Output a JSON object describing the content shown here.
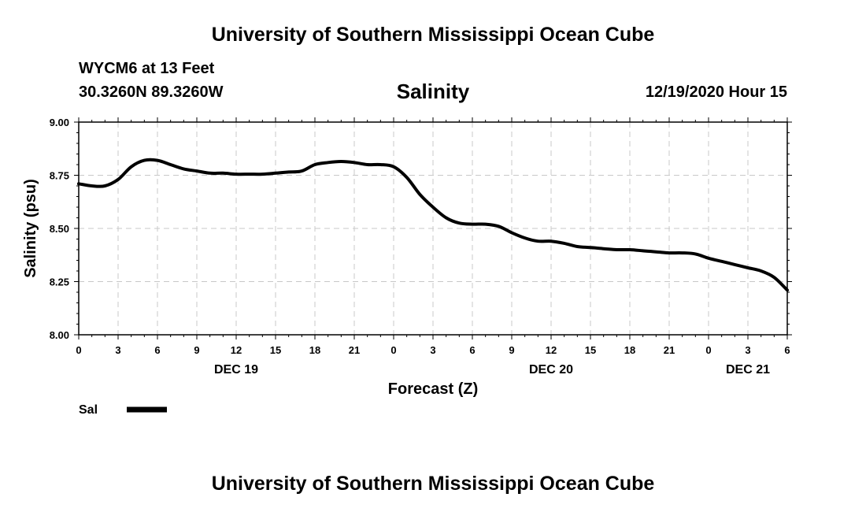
{
  "header": {
    "org_title": "University of Southern Mississippi Ocean Cube",
    "station": "WYCM6 at 13 Feet",
    "coords": "30.3260N 89.3260W",
    "chart_title": "Salinity",
    "datetime": "12/19/2020 Hour 15"
  },
  "footer": {
    "org_title": "University of Southern Mississippi Ocean Cube"
  },
  "chart_data": {
    "type": "line",
    "title": "Salinity",
    "xlabel": "Forecast (Z)",
    "ylabel": "Salinity (psu)",
    "ylim": [
      8.0,
      9.0
    ],
    "xlim": [
      0,
      54
    ],
    "yticks": [
      "8.00",
      "8.25",
      "8.50",
      "8.75",
      "9.00"
    ],
    "xtick_labels": [
      "0",
      "3",
      "6",
      "9",
      "12",
      "15",
      "18",
      "21",
      "0",
      "3",
      "6",
      "9",
      "12",
      "15",
      "18",
      "21",
      "0",
      "3",
      "6"
    ],
    "date_labels": [
      {
        "label": "DEC 19",
        "hour": 12
      },
      {
        "label": "DEC 20",
        "hour": 36
      },
      {
        "label": "DEC 21",
        "hour": 51
      }
    ],
    "grid": true,
    "legend": [
      {
        "name": "Sal"
      }
    ],
    "series": [
      {
        "name": "Sal",
        "x": [
          0,
          1,
          2,
          3,
          4,
          5,
          6,
          7,
          8,
          9,
          10,
          11,
          12,
          13,
          14,
          15,
          16,
          17,
          18,
          19,
          20,
          21,
          22,
          23,
          24,
          25,
          26,
          27,
          28,
          29,
          30,
          31,
          32,
          33,
          34,
          35,
          36,
          37,
          38,
          39,
          40,
          41,
          42,
          43,
          44,
          45,
          46,
          47,
          48,
          49,
          50,
          51,
          52,
          53,
          54
        ],
        "values": [
          8.71,
          8.7,
          8.7,
          8.73,
          8.79,
          8.82,
          8.82,
          8.8,
          8.78,
          8.77,
          8.76,
          8.76,
          8.755,
          8.755,
          8.755,
          8.76,
          8.765,
          8.77,
          8.8,
          8.81,
          8.815,
          8.81,
          8.8,
          8.8,
          8.79,
          8.74,
          8.66,
          8.6,
          8.55,
          8.525,
          8.52,
          8.52,
          8.51,
          8.48,
          8.455,
          8.44,
          8.44,
          8.43,
          8.415,
          8.41,
          8.405,
          8.4,
          8.4,
          8.395,
          8.39,
          8.385,
          8.385,
          8.38,
          8.36,
          8.345,
          8.33,
          8.315,
          8.3,
          8.27,
          8.21
        ]
      }
    ]
  }
}
